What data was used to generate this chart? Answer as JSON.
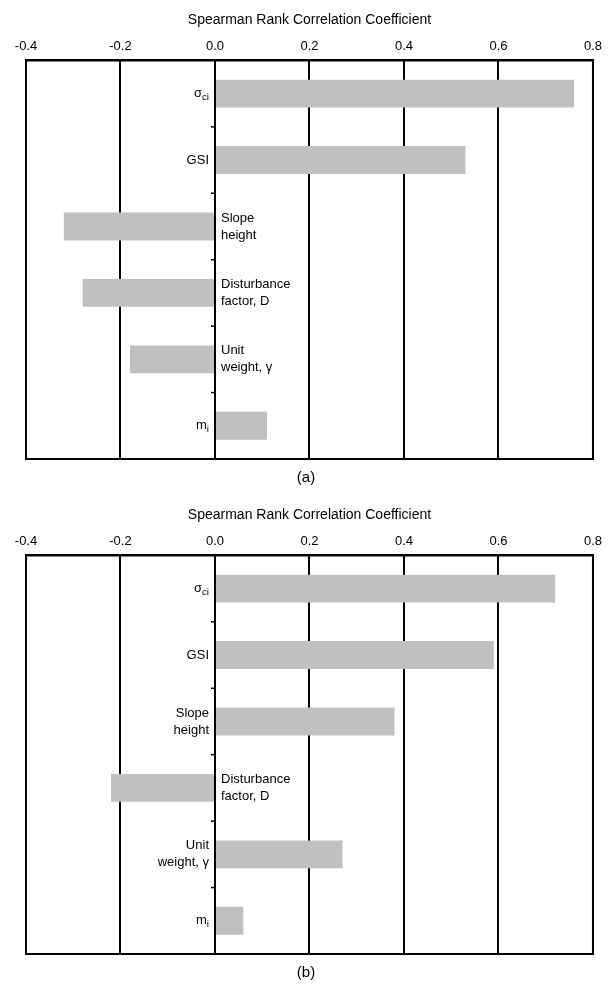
{
  "chart_data": [
    {
      "type": "bar",
      "orientation": "horizontal",
      "title": "(a)",
      "xlabel": "Spearman Rank Correlation Coefficient",
      "categories": [
        "σ$_{ci}$",
        "GSI",
        "Slope height",
        "Disturbance factor, D",
        "Unit weight, γ",
        "m$_{i}$"
      ],
      "values": [
        0.76,
        0.53,
        -0.32,
        -0.28,
        -0.18,
        0.11
      ],
      "color": "#c0c0c0",
      "xlim": [
        -0.4,
        0.8
      ],
      "xticks": [
        -0.4,
        -0.2,
        {
          "value": 0,
          "label": "0.0"
        },
        0.2,
        0.4,
        0.6,
        0.8
      ],
      "grid": "x"
    },
    {
      "type": "bar",
      "orientation": "horizontal",
      "title": "(b)",
      "xlabel": "Spearman Rank Correlation Coefficient",
      "categories": [
        "σ$_{ci}$",
        "GSI",
        "Slope height",
        "Disturbance factor, D",
        "Unit weight, γ",
        "m$_{i}$"
      ],
      "values": [
        0.72,
        0.59,
        0.38,
        -0.22,
        0.27,
        0.06
      ],
      "color": "#c0c0c0",
      "xlim": [
        -0.4,
        0.8
      ],
      "xticks": [
        -0.4,
        -0.2,
        {
          "value": 0,
          "label": "0.0"
        },
        0.2,
        0.4,
        0.6,
        0.8
      ],
      "grid": "x"
    }
  ]
}
